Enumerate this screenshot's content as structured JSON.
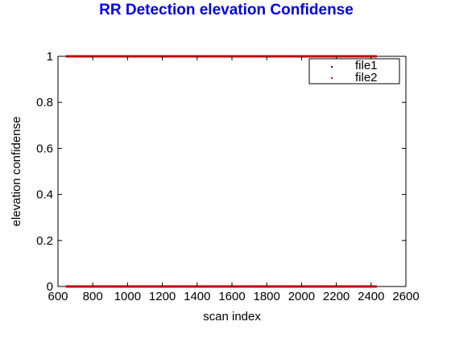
{
  "chart_data": {
    "type": "scatter",
    "title": "RR Detection elevation Confidense",
    "title_color": "#0000ee",
    "xlabel": "scan index",
    "ylabel": "elevation confidense",
    "xlim": [
      600,
      2600
    ],
    "ylim": [
      0,
      1
    ],
    "xticks": [
      600,
      800,
      1000,
      1200,
      1400,
      1600,
      1800,
      2000,
      2200,
      2400,
      2600
    ],
    "yticks": [
      0,
      0.2,
      0.4,
      0.6,
      0.8,
      1
    ],
    "ytick_labels": [
      "0",
      "0.2",
      "0.4",
      "0.6",
      "0.8",
      "1"
    ],
    "grid": false,
    "legend_position": "top-right",
    "series": [
      {
        "name": "file1",
        "color": "#00008b",
        "marker": "point",
        "segments": [
          {
            "x_start": 650,
            "x_end": 2430,
            "y": 1
          },
          {
            "x_start": 650,
            "x_end": 2430,
            "y": 0
          }
        ]
      },
      {
        "name": "file2",
        "color": "#cc0000",
        "marker": "point",
        "segments": [
          {
            "x_start": 650,
            "x_end": 2430,
            "y": 1
          },
          {
            "x_start": 650,
            "x_end": 2430,
            "y": 0
          }
        ]
      }
    ]
  }
}
